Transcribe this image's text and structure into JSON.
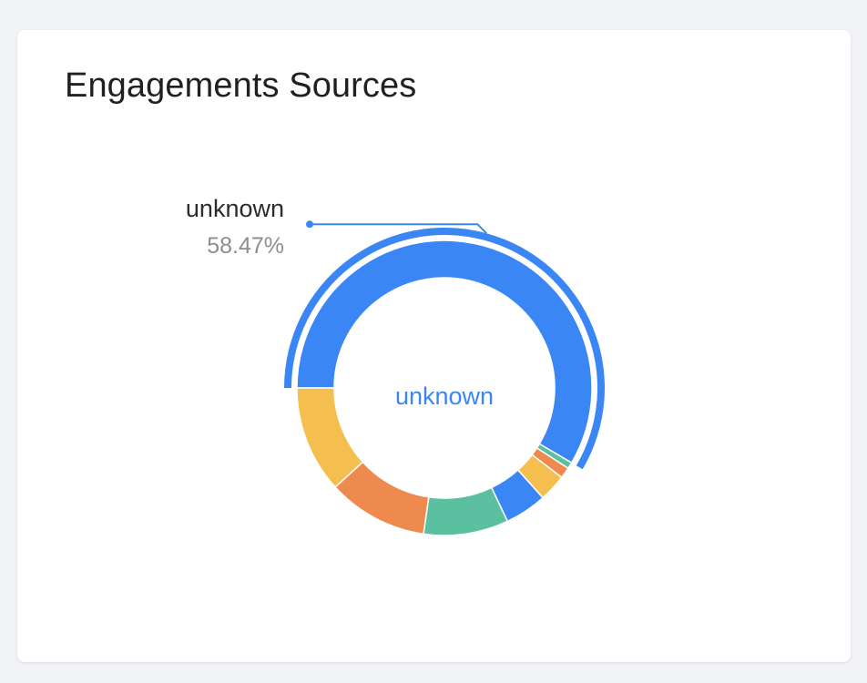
{
  "card": {
    "title": "Engagements Sources"
  },
  "chart_data": {
    "type": "pie",
    "variant": "donut",
    "center_label": "unknown",
    "callout": {
      "label": "unknown",
      "value": "58.47%"
    },
    "slices": [
      {
        "name": "unknown",
        "percent": 58.47,
        "color": "#3b86f5",
        "highlighted": true
      },
      {
        "name": "",
        "percent": 0.7,
        "color": "#5ac0a0"
      },
      {
        "name": "",
        "percent": 1.2,
        "color": "#ef8a4f"
      },
      {
        "name": "",
        "percent": 3.0,
        "color": "#f5bf4f"
      },
      {
        "name": "",
        "percent": 4.6,
        "color": "#3b86f5"
      },
      {
        "name": "",
        "percent": 9.3,
        "color": "#5ac0a0"
      },
      {
        "name": "",
        "percent": 11.0,
        "color": "#ef8a4f"
      },
      {
        "name": "",
        "percent": 11.73,
        "color": "#f5bf4f"
      }
    ]
  }
}
